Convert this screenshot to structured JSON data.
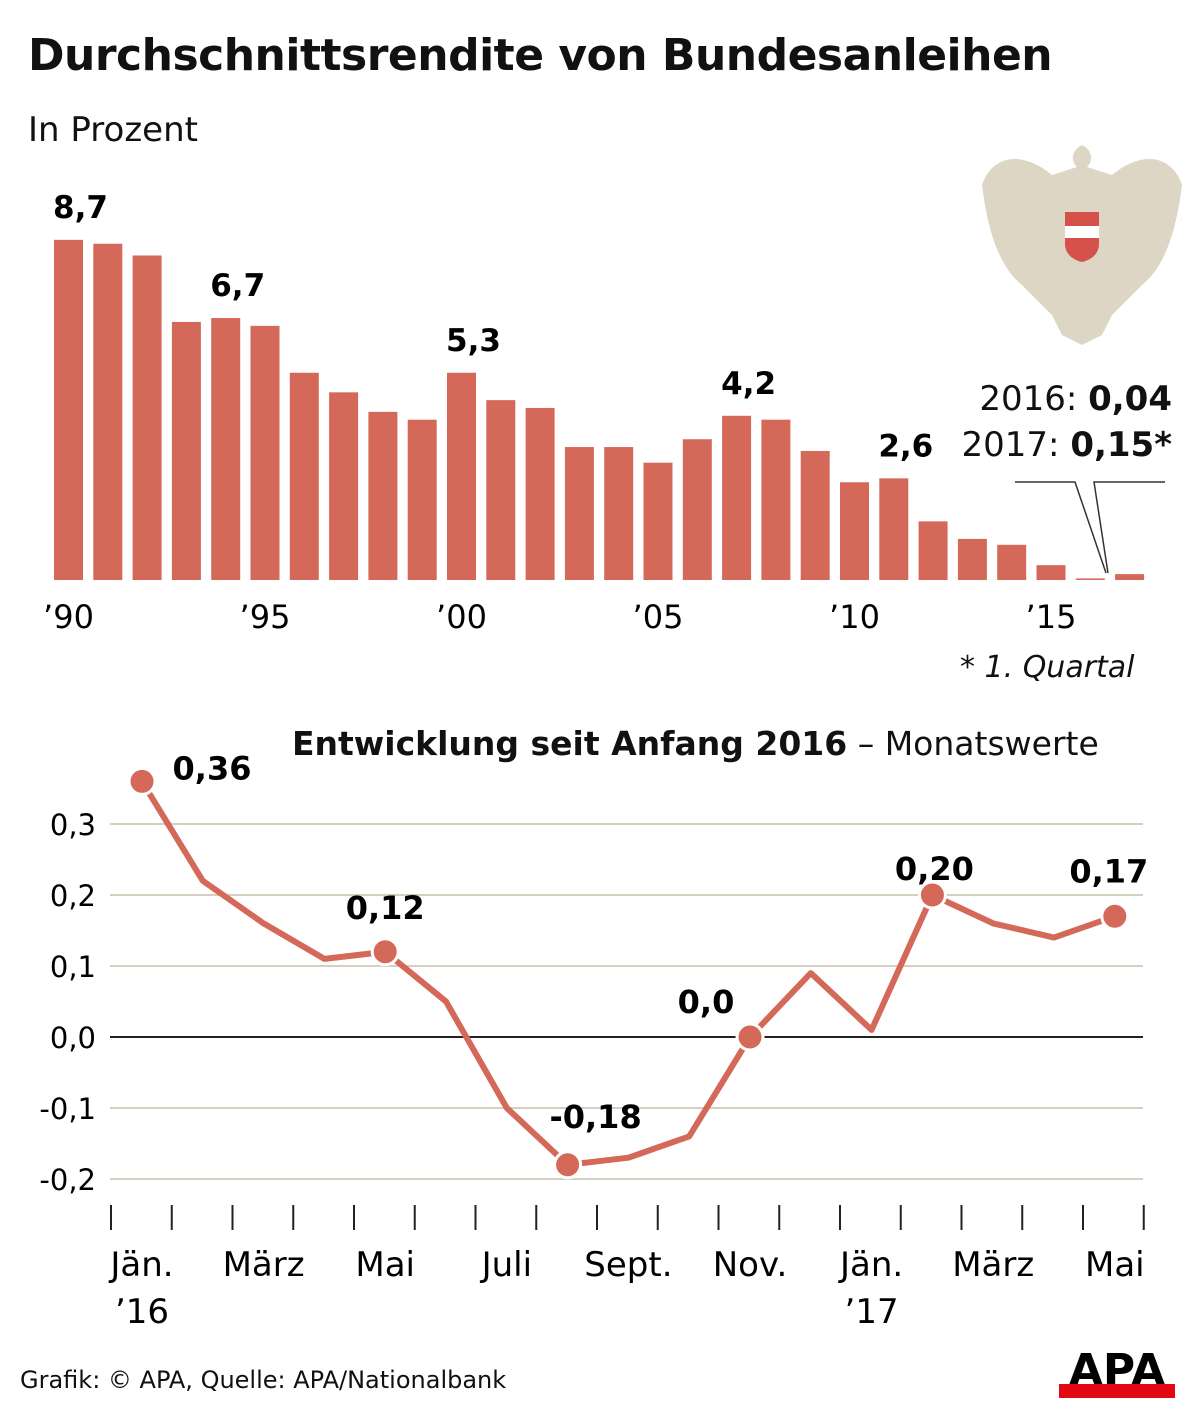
{
  "title": "Durchschnittsrendite von Bundesanleihen",
  "subtitle": "In Prozent",
  "colors": {
    "bar": "#d4695a",
    "line": "#d4695a",
    "grid": "#d6cfbf",
    "eagle": "#ddd6c4",
    "logo_red": "#e30613"
  },
  "chart_data": [
    {
      "type": "bar",
      "categories": [
        "1990",
        "1991",
        "1992",
        "1993",
        "1994",
        "1995",
        "1996",
        "1997",
        "1998",
        "1999",
        "2000",
        "2001",
        "2002",
        "2003",
        "2004",
        "2005",
        "2006",
        "2007",
        "2008",
        "2009",
        "2010",
        "2011",
        "2012",
        "2013",
        "2014",
        "2015",
        "2016",
        "2017"
      ],
      "values": [
        8.7,
        8.6,
        8.3,
        6.6,
        6.7,
        6.5,
        5.3,
        4.8,
        4.3,
        4.1,
        5.3,
        4.6,
        4.4,
        3.4,
        3.4,
        3.0,
        3.6,
        4.2,
        4.1,
        3.3,
        2.5,
        2.6,
        1.5,
        1.05,
        0.9,
        0.38,
        0.04,
        0.15
      ],
      "data_labels": [
        {
          "category": "1990",
          "text": "8,7"
        },
        {
          "category": "1994",
          "text": "6,7"
        },
        {
          "category": "2000",
          "text": "5,3"
        },
        {
          "category": "2007",
          "text": "4,2"
        },
        {
          "category": "2011",
          "text": "2,6"
        }
      ],
      "tick_labels": [
        {
          "category": "1990",
          "text": "’90"
        },
        {
          "category": "1995",
          "text": "’95"
        },
        {
          "category": "2000",
          "text": "’00"
        },
        {
          "category": "2005",
          "text": "’05"
        },
        {
          "category": "2010",
          "text": "’10"
        },
        {
          "category": "2015",
          "text": "’15"
        }
      ],
      "annotation": {
        "line1_label": "2016:",
        "line1_value": "0,04",
        "line2_label": "2017:",
        "line2_value": "0,15*"
      },
      "footnote": "* 1. Quartal",
      "ylim": [
        0,
        8.7
      ]
    },
    {
      "type": "line",
      "title_bold": "Entwicklung seit Anfang 2016",
      "title_rest": " – Monatswerte",
      "x": [
        "2016-01",
        "2016-02",
        "2016-03",
        "2016-04",
        "2016-05",
        "2016-06",
        "2016-07",
        "2016-08",
        "2016-09",
        "2016-10",
        "2016-11",
        "2016-12",
        "2017-01",
        "2017-02",
        "2017-03",
        "2017-04",
        "2017-05"
      ],
      "values": [
        0.36,
        0.22,
        0.16,
        0.11,
        0.12,
        0.05,
        -0.1,
        -0.18,
        -0.17,
        -0.14,
        0.0,
        0.09,
        0.01,
        0.2,
        0.16,
        0.14,
        0.17
      ],
      "data_labels": [
        {
          "index": 0,
          "text": "0,36"
        },
        {
          "index": 4,
          "text": "0,12"
        },
        {
          "index": 7,
          "text": "-0,18"
        },
        {
          "index": 10,
          "text": "0,0"
        },
        {
          "index": 13,
          "text": "0,20"
        },
        {
          "index": 16,
          "text": "0,17"
        }
      ],
      "yticks": [
        0.3,
        0.2,
        0.1,
        0.0,
        -0.1,
        -0.2
      ],
      "ytick_labels": [
        "0,3",
        "0,2",
        "0,1",
        "0,0",
        "-0,1",
        "-0,2"
      ],
      "xtick_labels": [
        {
          "index": 0,
          "text": "Jän.",
          "text2": "’16"
        },
        {
          "index": 2,
          "text": "März"
        },
        {
          "index": 4,
          "text": "Mai"
        },
        {
          "index": 6,
          "text": "Juli"
        },
        {
          "index": 8,
          "text": "Sept."
        },
        {
          "index": 10,
          "text": "Nov."
        },
        {
          "index": 12,
          "text": "Jän.",
          "text2": "’17"
        },
        {
          "index": 14,
          "text": "März"
        },
        {
          "index": 16,
          "text": "Mai"
        }
      ],
      "ylim": [
        -0.2,
        0.36
      ],
      "grid": true
    }
  ],
  "footer": "Grafik: © APA, Quelle: APA/Nationalbank",
  "logo": "APA"
}
